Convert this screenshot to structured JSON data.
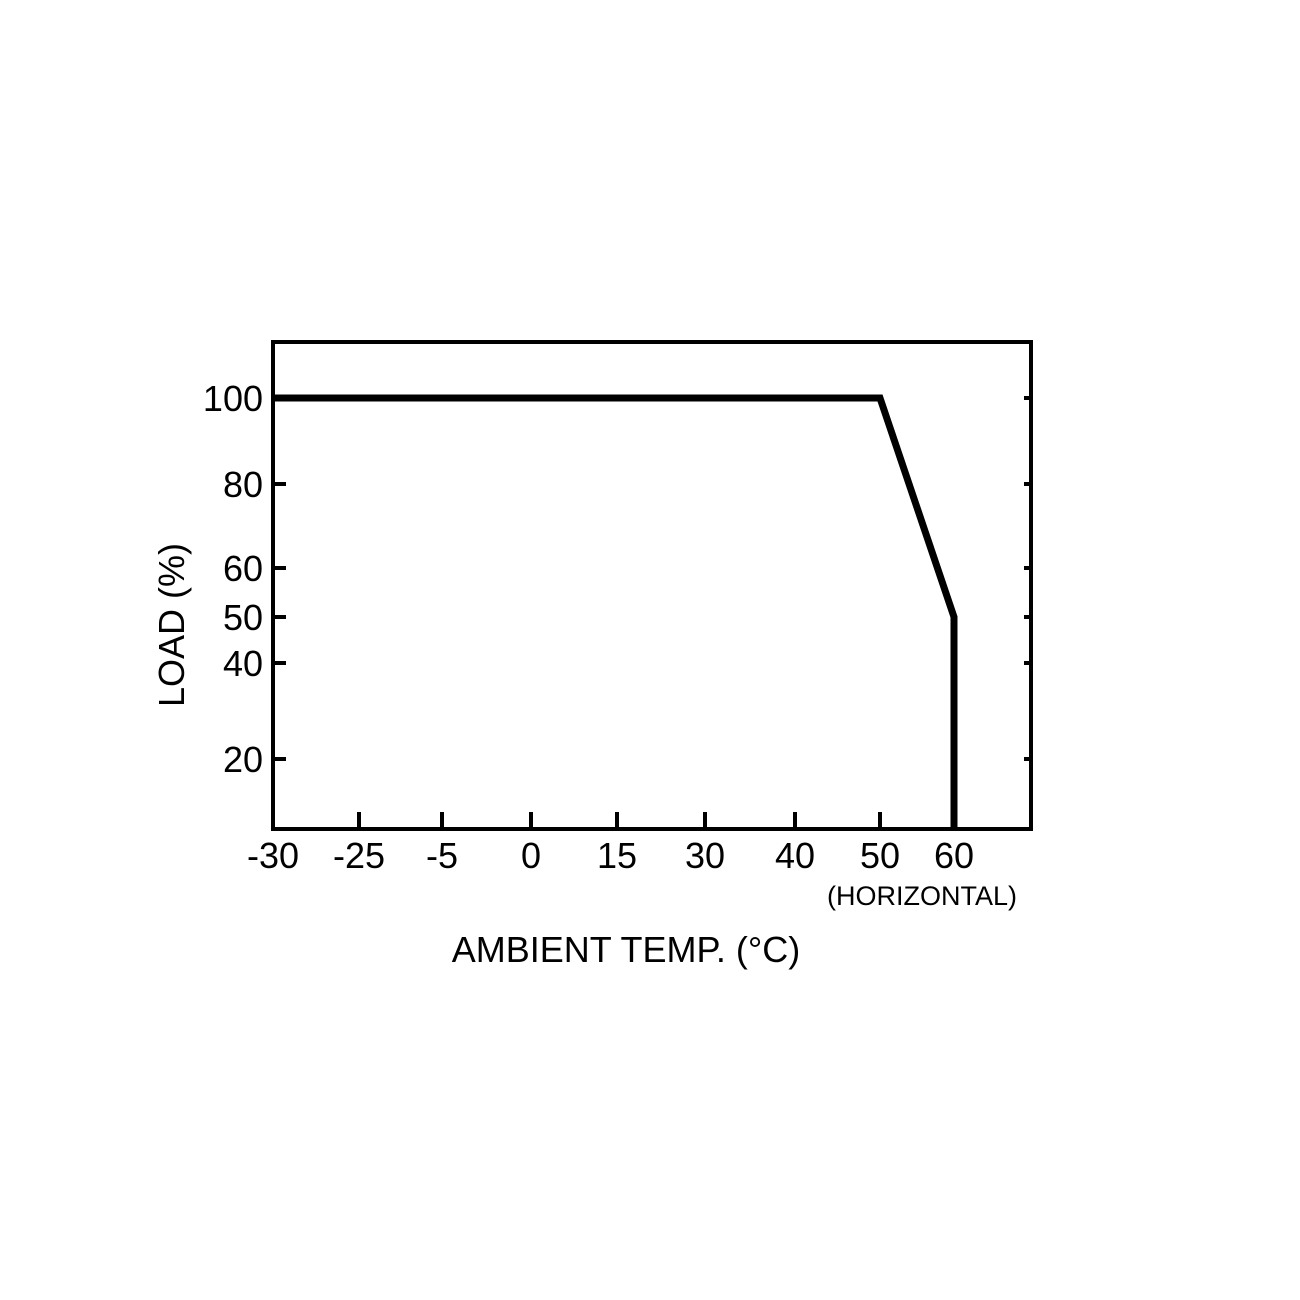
{
  "chart_data": {
    "type": "line",
    "title": "",
    "xlabel": "AMBIENT TEMP. (°C)",
    "xlabel_note": "(HORIZONTAL)",
    "ylabel": "LOAD (%)",
    "x_ticks": [
      "-30",
      "-25",
      "-5",
      "0",
      "15",
      "30",
      "40",
      "50",
      "60"
    ],
    "y_ticks": [
      "100",
      "80",
      "60",
      "50",
      "40",
      "20"
    ],
    "series": [
      {
        "color": "#000000",
        "points": [
          {
            "x": -30,
            "y": 100
          },
          {
            "x": 50,
            "y": 100
          },
          {
            "x": 60,
            "y": 50
          },
          {
            "x": 60,
            "y": 5
          }
        ]
      }
    ],
    "grid": false,
    "legend": "none"
  }
}
